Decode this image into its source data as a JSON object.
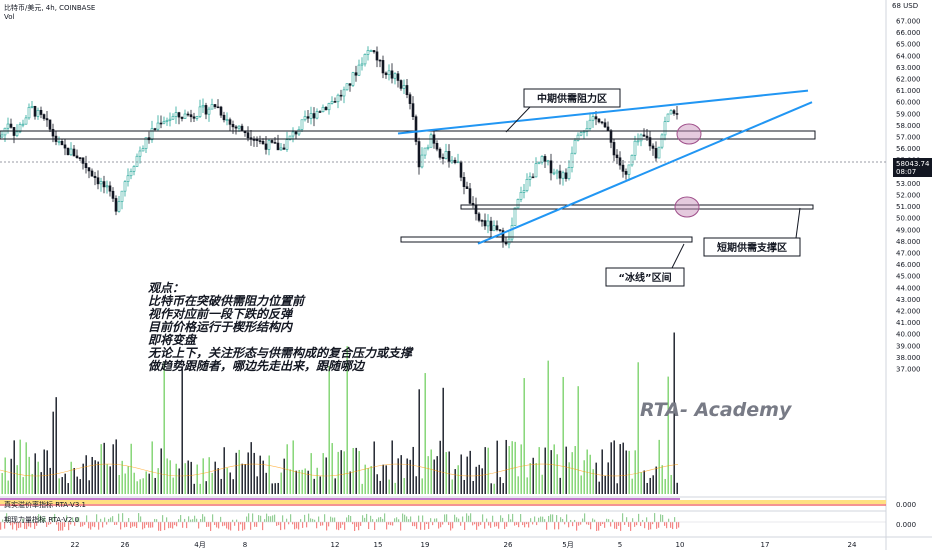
{
  "header": {
    "symbol_line": "比特币/美元, 4h, COINBASE",
    "vol_label": "Vol",
    "currency": "USD"
  },
  "y_axis": {
    "corner_label": "68 USD",
    "ticks": [
      "67.000",
      "66.000",
      "65.000",
      "64.000",
      "63.000",
      "62.000",
      "61.000",
      "60.000",
      "59.000",
      "58.000",
      "57.000",
      "56.000",
      "55.000",
      "54.000",
      "53.000",
      "52.000",
      "51.000",
      "50.000",
      "49.000",
      "48.000",
      "47.000",
      "46.000",
      "45.000",
      "44.000",
      "43.000",
      "42.000",
      "41.000",
      "40.000",
      "39.000",
      "38.000",
      "37.000"
    ],
    "last_price": "58043.74",
    "countdown": "08:07",
    "ind1_value": "0.000",
    "ind2_value": "0.000"
  },
  "x_axis": {
    "ticks": [
      "22",
      "26",
      "4月",
      "8",
      "12",
      "15",
      "19",
      "26",
      "5月",
      "5",
      "10",
      "17",
      "24"
    ]
  },
  "annotations": {
    "mid_zone": "中期供需阻力区",
    "short_zone": "短期供需支撑区",
    "ice_zone": "“冰线”区间",
    "watermark": "RTA- Academy",
    "view_title": "观点：",
    "view_lines": [
      "比特币在突破供需阻力位置前",
      "视作对应前一段下跌的反弹",
      "目前价格运行于楔形结构内",
      "即将变盘",
      "无论上下，关注形态与供需构成的复合压力或支撑",
      "做趋势跟随者，哪边先走出来，跟随哪边"
    ]
  },
  "indicators": {
    "ind1_label": "真实溢价率指标 RTA-V3.1",
    "ind2_label": "期现力量指标 RTA-V2.0"
  },
  "colors": {
    "up": "#26a69a",
    "down": "#131722",
    "wedge": "#2196f3",
    "price_tag": "#131722",
    "vol_up": "#7ed36e",
    "vol_down": "#131722",
    "zone_circle": "#c58ab5"
  },
  "chart_data": {
    "type": "candlestick",
    "timeframe": "4h",
    "ylim": [
      37000,
      68000
    ],
    "series_path": [
      {
        "t": 0,
        "p": 57000
      },
      {
        "t": 8,
        "p": 58500
      },
      {
        "t": 14,
        "p": 57200
      },
      {
        "t": 30,
        "p": 59500
      },
      {
        "t": 45,
        "p": 58200
      },
      {
        "t": 60,
        "p": 56000
      },
      {
        "t": 75,
        "p": 55500
      },
      {
        "t": 90,
        "p": 54000
      },
      {
        "t": 105,
        "p": 52500
      },
      {
        "t": 115,
        "p": 51000
      },
      {
        "t": 125,
        "p": 53500
      },
      {
        "t": 140,
        "p": 56000
      },
      {
        "t": 160,
        "p": 58500
      },
      {
        "t": 180,
        "p": 58800
      },
      {
        "t": 200,
        "p": 59200
      },
      {
        "t": 215,
        "p": 59800
      },
      {
        "t": 230,
        "p": 58000
      },
      {
        "t": 245,
        "p": 57500
      },
      {
        "t": 260,
        "p": 56500
      },
      {
        "t": 280,
        "p": 56000
      },
      {
        "t": 300,
        "p": 58000
      },
      {
        "t": 315,
        "p": 59200
      },
      {
        "t": 330,
        "p": 60000
      },
      {
        "t": 345,
        "p": 61000
      },
      {
        "t": 360,
        "p": 63500
      },
      {
        "t": 370,
        "p": 64800
      },
      {
        "t": 380,
        "p": 63000
      },
      {
        "t": 395,
        "p": 62000
      },
      {
        "t": 405,
        "p": 61000
      },
      {
        "t": 412,
        "p": 58500
      },
      {
        "t": 418,
        "p": 54500
      },
      {
        "t": 425,
        "p": 56000
      },
      {
        "t": 430,
        "p": 57200
      },
      {
        "t": 440,
        "p": 55500
      },
      {
        "t": 455,
        "p": 55000
      },
      {
        "t": 465,
        "p": 52500
      },
      {
        "t": 475,
        "p": 50000
      },
      {
        "t": 485,
        "p": 49500
      },
      {
        "t": 500,
        "p": 48500
      },
      {
        "t": 508,
        "p": 48000
      },
      {
        "t": 515,
        "p": 51000
      },
      {
        "t": 525,
        "p": 53000
      },
      {
        "t": 540,
        "p": 55000
      },
      {
        "t": 555,
        "p": 54000
      },
      {
        "t": 565,
        "p": 53500
      },
      {
        "t": 575,
        "p": 57500
      },
      {
        "t": 590,
        "p": 58200
      },
      {
        "t": 600,
        "p": 58800
      },
      {
        "t": 612,
        "p": 56000
      },
      {
        "t": 625,
        "p": 53500
      },
      {
        "t": 635,
        "p": 56500
      },
      {
        "t": 645,
        "p": 57000
      },
      {
        "t": 655,
        "p": 55500
      },
      {
        "t": 665,
        "p": 58500
      },
      {
        "t": 672,
        "p": 59500
      },
      {
        "t": 680,
        "p": 58043
      }
    ],
    "last_price": 58043.74,
    "zones": [
      {
        "label": "中期供需阻力区",
        "low": 59700,
        "high": 60100
      },
      {
        "label": "短期供需支撑区",
        "low": 55200,
        "high": 55500
      },
      {
        "label": "“冰线”区间",
        "low": 53000,
        "high": 53400
      }
    ],
    "wedge_lines": [
      {
        "from": {
          "t": 398,
          "p": 57300
        },
        "to": {
          "t": 808,
          "p": 61000
        }
      },
      {
        "from": {
          "t": 478,
          "p": 47800
        },
        "to": {
          "t": 812,
          "p": 60000
        }
      }
    ]
  }
}
